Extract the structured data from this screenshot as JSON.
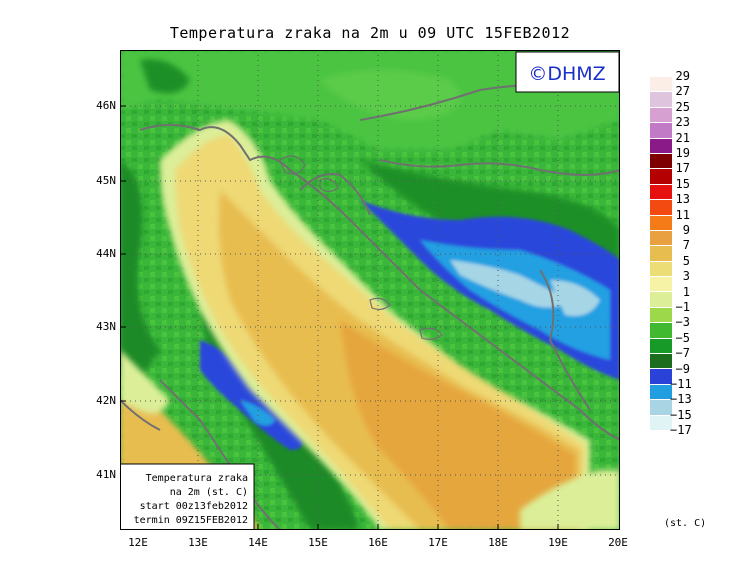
{
  "title": "Temperatura zraka na 2m u 09 UTC 15FEB2012",
  "logo": "©DHMZ",
  "info_box": {
    "line1": "Temperatura zraka",
    "line2": "na 2m (st. C)",
    "line3": "start 00z13feb2012",
    "line4": "termin 09Z15FEB2012"
  },
  "y_ticks": [
    "46N",
    "45N",
    "44N",
    "43N",
    "42N",
    "41N"
  ],
  "x_ticks": [
    "12E",
    "13E",
    "14E",
    "15E",
    "16E",
    "17E",
    "18E",
    "19E",
    "20E"
  ],
  "legend": {
    "labels": [
      "29",
      "27",
      "25",
      "23",
      "21",
      "19",
      "17",
      "15",
      "13",
      "11",
      "9",
      "7",
      "5",
      "3",
      "1",
      "−1",
      "−3",
      "−5",
      "−7",
      "−9",
      "−11",
      "−13",
      "−15",
      "−17"
    ],
    "colors": [
      "#fbeee6",
      "#dfc4de",
      "#d6a0d0",
      "#c07ac6",
      "#8a1a88",
      "#7e0000",
      "#b40000",
      "#e61010",
      "#f24a10",
      "#f57a18",
      "#e8a040",
      "#e8bd50",
      "#ecdd76",
      "#f6f2a6",
      "#dcee98",
      "#9cd84a",
      "#40b830",
      "#189a28",
      "#1c6e1e",
      "#2a42d8",
      "#209ee0",
      "#a8d4e4",
      "#e0f4f6",
      "#ffffff"
    ],
    "units": "(st. C)"
  },
  "colors": {
    "warm_sea": "#e5a63c",
    "sea_yellow": "#eed975",
    "land_green": "#3ab63a",
    "dark_green": "#1a8a26",
    "cold_blue": "#2c46dc",
    "light_blue": "#23a0e2",
    "border": "#707070"
  }
}
